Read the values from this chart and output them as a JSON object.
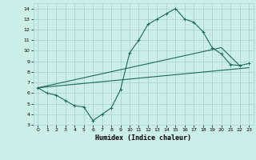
{
  "xlabel": "Humidex (Indice chaleur)",
  "bg_color": "#cceee8",
  "grid_color": "#aad4ce",
  "line_color": "#1a6b5a",
  "xlim": [
    -0.5,
    23.5
  ],
  "ylim": [
    3,
    14.5
  ],
  "xticks": [
    0,
    1,
    2,
    3,
    4,
    5,
    6,
    7,
    8,
    9,
    10,
    11,
    12,
    13,
    14,
    15,
    16,
    17,
    18,
    19,
    20,
    21,
    22,
    23
  ],
  "yticks": [
    3,
    4,
    5,
    6,
    7,
    8,
    9,
    10,
    11,
    12,
    13,
    14
  ],
  "line1_x": [
    0,
    1,
    2,
    3,
    4,
    5,
    6,
    7,
    8,
    9,
    10,
    11,
    12,
    13,
    14,
    15,
    16,
    17,
    18,
    19,
    20,
    21,
    22,
    23
  ],
  "line1_y": [
    6.5,
    6.0,
    5.8,
    5.3,
    4.8,
    4.7,
    3.4,
    4.0,
    4.6,
    6.3,
    9.8,
    11.0,
    12.5,
    13.0,
    13.5,
    14.0,
    13.0,
    12.7,
    11.8,
    10.3,
    9.7,
    8.7,
    8.6,
    8.8
  ],
  "line2_x": [
    0,
    23
  ],
  "line2_y": [
    6.5,
    8.4
  ],
  "line3_x": [
    0,
    20,
    22
  ],
  "line3_y": [
    6.5,
    10.3,
    8.6
  ]
}
